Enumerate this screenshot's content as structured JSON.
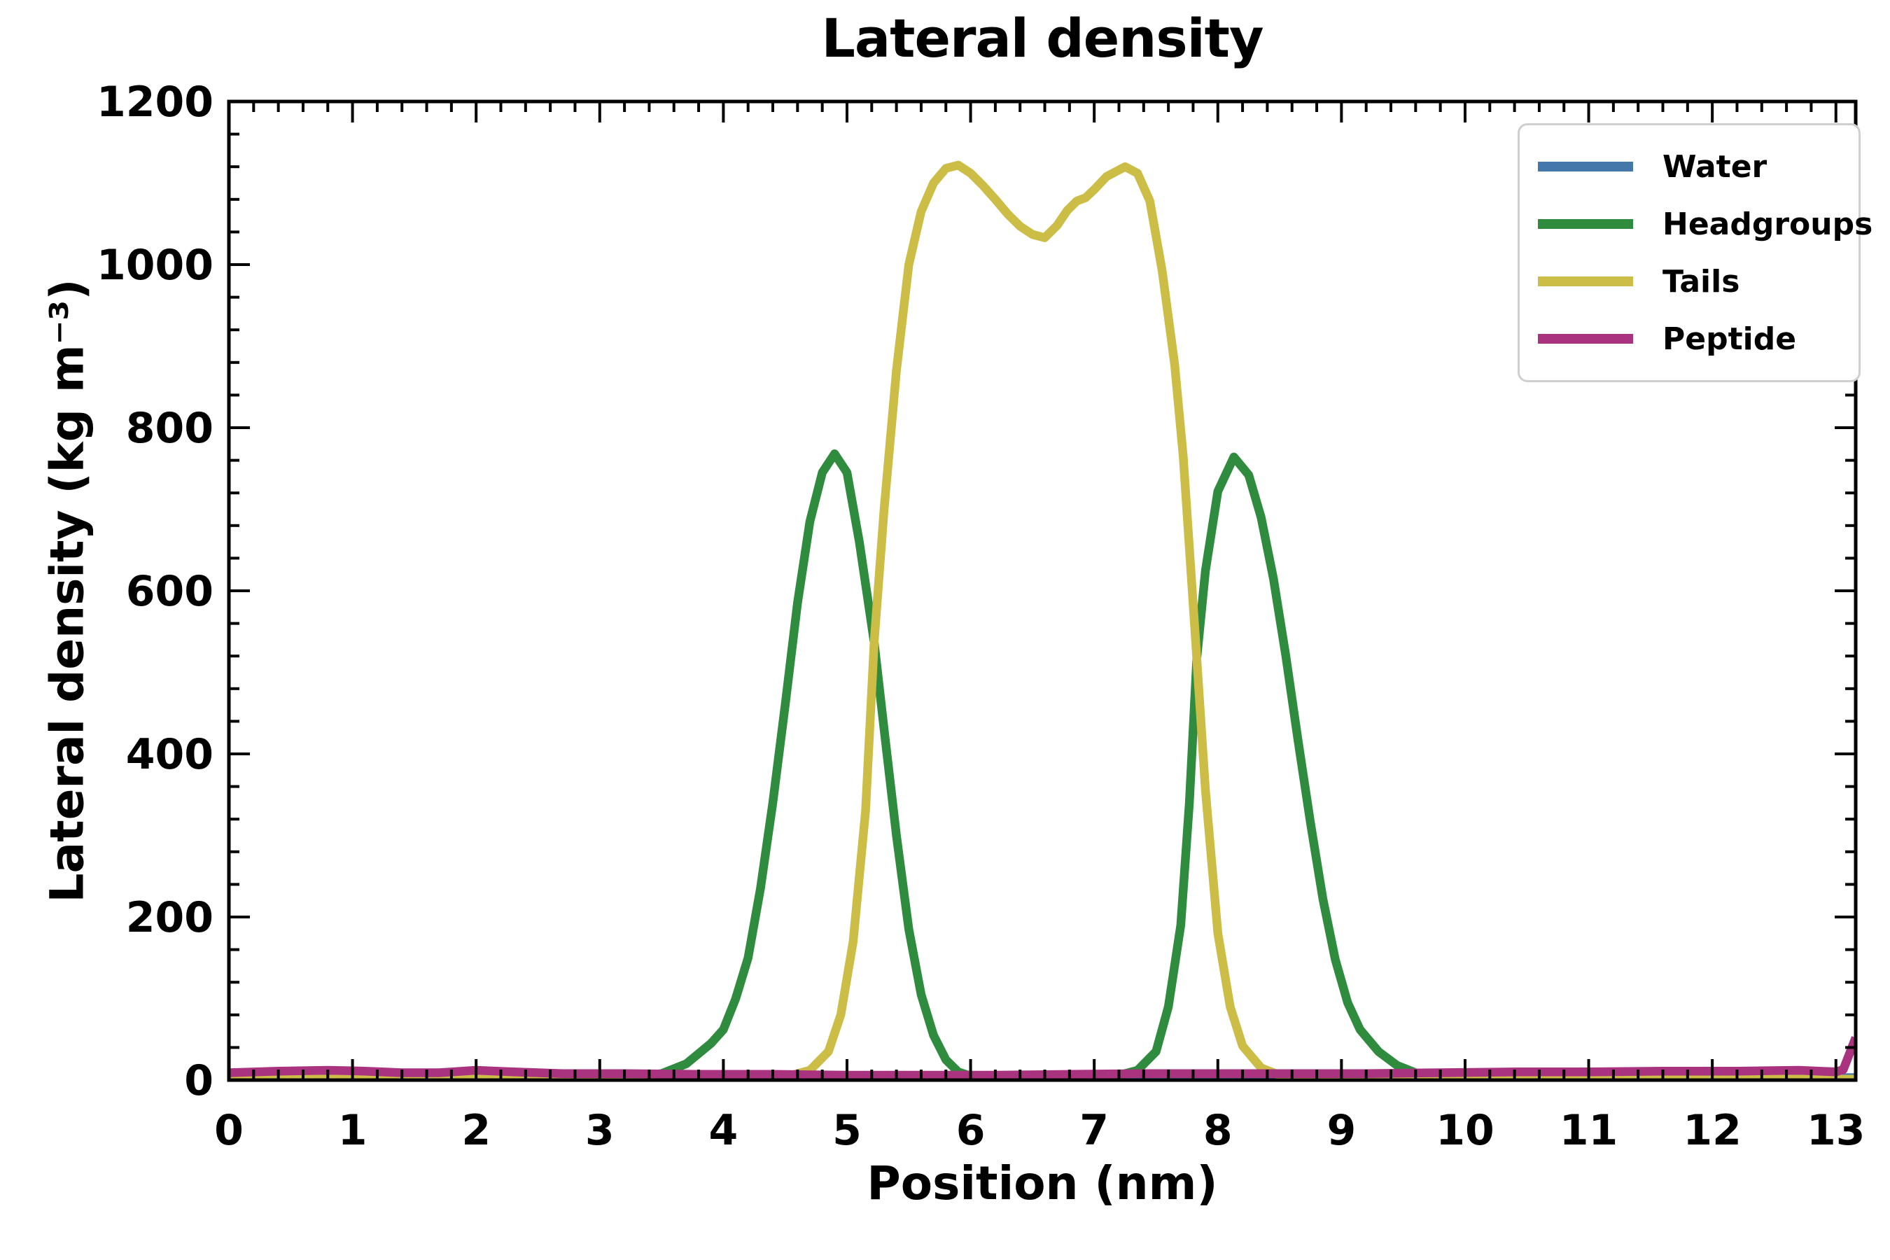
{
  "page": {
    "title": "Lateral density",
    "xlabel": "Position (nm)",
    "ylabel": "Lateral density (kg m⁻³)"
  },
  "chart_data": {
    "type": "line",
    "title": "Lateral density",
    "xlabel": "Position (nm)",
    "ylabel": "Lateral density (kg m⁻³)",
    "xlim": [
      0,
      13.16
    ],
    "ylim": [
      0,
      1200
    ],
    "x_major_tick_step": 1,
    "x_minor_tick_step": 0.2,
    "y_major_tick_step": 200,
    "y_minor_tick_step": 40,
    "grid": false,
    "legend_position": "upper right",
    "axis_color": "#000000",
    "series": [
      {
        "name": "Water",
        "color": "#4477AA",
        "points": [
          [
            0,
            3
          ],
          [
            2,
            3
          ],
          [
            4,
            3
          ],
          [
            6,
            3
          ],
          [
            8,
            3
          ],
          [
            10,
            3
          ],
          [
            12,
            3
          ],
          [
            13.16,
            3
          ]
        ]
      },
      {
        "name": "Headgroups",
        "color": "#2F8C3E",
        "points": [
          [
            0,
            1
          ],
          [
            1,
            1
          ],
          [
            2,
            1
          ],
          [
            2.8,
            1
          ],
          [
            3.1,
            2
          ],
          [
            3.3,
            4
          ],
          [
            3.5,
            8
          ],
          [
            3.7,
            20
          ],
          [
            3.9,
            45
          ],
          [
            4.0,
            62
          ],
          [
            4.1,
            100
          ],
          [
            4.2,
            150
          ],
          [
            4.3,
            235
          ],
          [
            4.4,
            340
          ],
          [
            4.5,
            460
          ],
          [
            4.6,
            585
          ],
          [
            4.7,
            685
          ],
          [
            4.8,
            745
          ],
          [
            4.9,
            768
          ],
          [
            5.0,
            745
          ],
          [
            5.1,
            660
          ],
          [
            5.22,
            537
          ],
          [
            5.3,
            430
          ],
          [
            5.4,
            300
          ],
          [
            5.5,
            185
          ],
          [
            5.6,
            105
          ],
          [
            5.7,
            55
          ],
          [
            5.8,
            25
          ],
          [
            5.9,
            10
          ],
          [
            6.0,
            5
          ],
          [
            6.2,
            2
          ],
          [
            6.5,
            1
          ],
          [
            6.8,
            2
          ],
          [
            7.0,
            3
          ],
          [
            7.2,
            6
          ],
          [
            7.35,
            12
          ],
          [
            7.5,
            35
          ],
          [
            7.6,
            90
          ],
          [
            7.7,
            190
          ],
          [
            7.77,
            340
          ],
          [
            7.83,
            517
          ],
          [
            7.9,
            625
          ],
          [
            8.0,
            722
          ],
          [
            8.13,
            764
          ],
          [
            8.25,
            742
          ],
          [
            8.35,
            690
          ],
          [
            8.45,
            615
          ],
          [
            8.55,
            520
          ],
          [
            8.65,
            415
          ],
          [
            8.75,
            315
          ],
          [
            8.85,
            222
          ],
          [
            8.95,
            148
          ],
          [
            9.05,
            95
          ],
          [
            9.15,
            62
          ],
          [
            9.3,
            35
          ],
          [
            9.45,
            18
          ],
          [
            9.6,
            9
          ],
          [
            9.8,
            3
          ],
          [
            10.0,
            1
          ],
          [
            11,
            1
          ],
          [
            12,
            1
          ],
          [
            13.16,
            1
          ]
        ]
      },
      {
        "name": "Tails",
        "color": "#CCBD46",
        "points": [
          [
            0,
            1
          ],
          [
            1,
            1
          ],
          [
            2,
            1
          ],
          [
            3,
            1
          ],
          [
            4,
            1
          ],
          [
            4.3,
            2
          ],
          [
            4.5,
            4
          ],
          [
            4.7,
            12
          ],
          [
            4.85,
            35
          ],
          [
            4.95,
            80
          ],
          [
            5.05,
            170
          ],
          [
            5.15,
            330
          ],
          [
            5.22,
            537
          ],
          [
            5.3,
            700
          ],
          [
            5.4,
            870
          ],
          [
            5.5,
            1000
          ],
          [
            5.6,
            1065
          ],
          [
            5.7,
            1100
          ],
          [
            5.8,
            1118
          ],
          [
            5.9,
            1122
          ],
          [
            6.0,
            1112
          ],
          [
            6.1,
            1097
          ],
          [
            6.2,
            1080
          ],
          [
            6.3,
            1062
          ],
          [
            6.4,
            1047
          ],
          [
            6.5,
            1037
          ],
          [
            6.6,
            1033
          ],
          [
            6.7,
            1048
          ],
          [
            6.78,
            1066
          ],
          [
            6.86,
            1078
          ],
          [
            6.93,
            1082
          ],
          [
            7.0,
            1092
          ],
          [
            7.1,
            1108
          ],
          [
            7.25,
            1120
          ],
          [
            7.35,
            1112
          ],
          [
            7.45,
            1078
          ],
          [
            7.55,
            992
          ],
          [
            7.65,
            878
          ],
          [
            7.72,
            765
          ],
          [
            7.83,
            517
          ],
          [
            7.9,
            355
          ],
          [
            8.0,
            180
          ],
          [
            8.1,
            90
          ],
          [
            8.2,
            42
          ],
          [
            8.35,
            15
          ],
          [
            8.5,
            6
          ],
          [
            8.7,
            3
          ],
          [
            9.0,
            2
          ],
          [
            10,
            1
          ],
          [
            11,
            1
          ],
          [
            12,
            1
          ],
          [
            13.16,
            1
          ]
        ]
      },
      {
        "name": "Peptide",
        "color": "#AA3380",
        "points": [
          [
            0,
            9
          ],
          [
            0.4,
            11
          ],
          [
            0.8,
            12
          ],
          [
            1.1,
            11
          ],
          [
            1.4,
            9
          ],
          [
            1.7,
            9
          ],
          [
            2.0,
            12
          ],
          [
            2.3,
            10
          ],
          [
            2.7,
            8
          ],
          [
            3.2,
            8
          ],
          [
            3.8,
            7
          ],
          [
            4.4,
            7
          ],
          [
            5.0,
            6
          ],
          [
            5.6,
            6
          ],
          [
            6.2,
            6
          ],
          [
            6.8,
            7
          ],
          [
            7.4,
            8
          ],
          [
            8.0,
            8
          ],
          [
            8.6,
            8
          ],
          [
            9.2,
            8
          ],
          [
            9.8,
            9
          ],
          [
            10.4,
            10
          ],
          [
            11.0,
            10
          ],
          [
            11.6,
            11
          ],
          [
            12.2,
            11
          ],
          [
            12.7,
            12
          ],
          [
            13.0,
            10
          ],
          [
            13.06,
            13
          ],
          [
            13.16,
            52
          ]
        ]
      }
    ]
  }
}
